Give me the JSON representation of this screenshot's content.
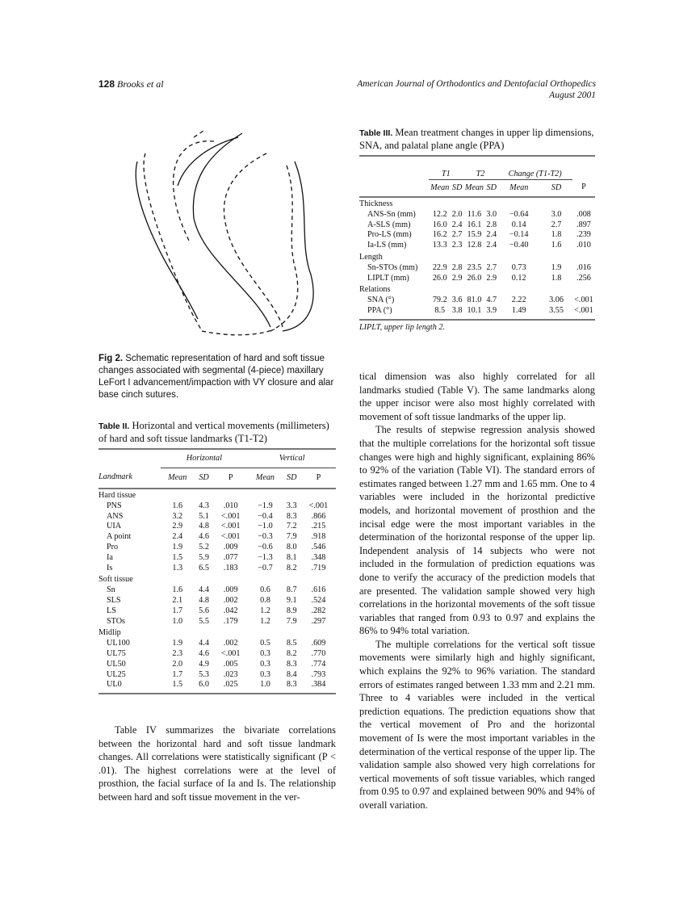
{
  "header": {
    "page_number": "128",
    "authors": "Brooks et al",
    "journal": "American Journal of Orthodontics and Dentofacial Orthopedics",
    "date": "August 2001"
  },
  "table3": {
    "label": "Table III.",
    "title": "Mean treatment changes in upper lip dimensions, SNA, and palatal plane angle (PPA)",
    "groups": [
      "T1",
      "T2",
      "Change (T1-T2)"
    ],
    "cols": [
      "Mean",
      "SD",
      "Mean",
      "SD",
      "Mean",
      "SD",
      "P"
    ],
    "sections": [
      {
        "name": "Thickness",
        "rows": [
          [
            "ANS-Sn (mm)",
            "12.2",
            "2.0",
            "11.6",
            "3.0",
            "−0.64",
            "3.0",
            ".008"
          ],
          [
            "A-SLS (mm)",
            "16.0",
            "2.4",
            "16.1",
            "2.8",
            "0.14",
            "2.7",
            ".897"
          ],
          [
            "Pro-LS (mm)",
            "16.2",
            "2.7",
            "15.9",
            "2.4",
            "−0.14",
            "1.8",
            ".239"
          ],
          [
            "Ia-LS (mm)",
            "13.3",
            "2.3",
            "12.8",
            "2.4",
            "−0.40",
            "1.6",
            ".010"
          ]
        ]
      },
      {
        "name": "Length",
        "rows": [
          [
            "Sn-STOs (mm)",
            "22.9",
            "2.8",
            "23.5",
            "2.7",
            "0.73",
            "1.9",
            ".016"
          ],
          [
            "LIPLT (mm)",
            "26.0",
            "2.9",
            "26.0",
            "2.9",
            "0.12",
            "1.8",
            ".256"
          ]
        ]
      },
      {
        "name": "Relations",
        "rows": [
          [
            "SNA (°)",
            "79.2",
            "3.6",
            "81.0",
            "4.7",
            "2.22",
            "3.06",
            "<.001"
          ],
          [
            "PPA (°)",
            "8.5",
            "3.8",
            "10.1",
            "3.9",
            "1.49",
            "3.55",
            "<.001"
          ]
        ]
      }
    ],
    "footnote": "LIPLT, upper lip length 2."
  },
  "figure": {
    "label": "Fig 2.",
    "caption": "Schematic representation of hard and soft tissue changes associated with segmental (4-piece) maxillary LeFort I advancement/impaction with VY closure and alar base cinch sutures."
  },
  "table2": {
    "label": "Table II.",
    "title": "Horizontal and vertical movements (millimeters) of hard and soft tissue landmarks (T1-T2)",
    "groups": [
      "Horizontal",
      "Vertical"
    ],
    "cols": [
      "Landmark",
      "Mean",
      "SD",
      "P",
      "Mean",
      "SD",
      "P"
    ],
    "sections": [
      {
        "name": "Hard tissue",
        "rows": [
          [
            "PNS",
            "1.6",
            "4.3",
            ".010",
            "−1.9",
            "3.3",
            "<.001"
          ],
          [
            "ANS",
            "3.2",
            "5.1",
            "<.001",
            "−0.4",
            "8.3",
            ".866"
          ],
          [
            "UIA",
            "2.9",
            "4.8",
            "<.001",
            "−1.0",
            "7.2",
            ".215"
          ],
          [
            "A point",
            "2.4",
            "4.6",
            "<.001",
            "−0.3",
            "7.9",
            ".918"
          ],
          [
            "Pro",
            "1.9",
            "5.2",
            ".009",
            "−0.6",
            "8.0",
            ".546"
          ],
          [
            "Ia",
            "1.5",
            "5.9",
            ".077",
            "−1.3",
            "8.1",
            ".348"
          ],
          [
            "Is",
            "1.3",
            "6.5",
            ".183",
            "−0.7",
            "8.2",
            ".719"
          ]
        ]
      },
      {
        "name": "Soft tissue",
        "rows": [
          [
            "Sn",
            "1.6",
            "4.4",
            ".009",
            "0.6",
            "8.7",
            ".616"
          ],
          [
            "SLS",
            "2.1",
            "4.8",
            ".002",
            "0.8",
            "9.1",
            ".524"
          ],
          [
            "LS",
            "1.7",
            "5.6",
            ".042",
            "1.2",
            "8.9",
            ".282"
          ],
          [
            "STOs",
            "1.0",
            "5.5",
            ".179",
            "1.2",
            "7.9",
            ".297"
          ]
        ]
      },
      {
        "name": "Midlip",
        "rows": [
          [
            "UL100",
            "1.9",
            "4.4",
            ".002",
            "0.5",
            "8.5",
            ".609"
          ],
          [
            "UL75",
            "2.3",
            "4.6",
            "<.001",
            "0.3",
            "8.2",
            ".770"
          ],
          [
            "UL50",
            "2.0",
            "4.9",
            ".005",
            "0.3",
            "8.3",
            ".774"
          ],
          [
            "UL25",
            "1.7",
            "5.3",
            ".023",
            "0.3",
            "8.4",
            ".793"
          ],
          [
            "UL0",
            "1.5",
            "6.0",
            ".025",
            "1.0",
            "8.3",
            ".384"
          ]
        ]
      }
    ]
  },
  "left_text": "Table IV summarizes the bivariate correlations between the horizontal hard and soft tissue landmark changes. All correlations were statistically significant (P < .01). The highest correlations were at the level of prosthion, the facial surface of Ia and Is. The relationship between hard and soft tissue movement in the ver-",
  "right_text": [
    "tical dimension was also highly correlated for all landmarks studied (Table V). The same landmarks along the upper incisor were also most highly correlated with movement of soft tissue landmarks of the upper lip.",
    "The results of stepwise regression analysis showed that the multiple correlations for the horizontal soft tissue changes were high and highly significant, explaining 86% to 92% of the variation (Table VI). The standard errors of estimates ranged between 1.27 mm and 1.65 mm. One to 4 variables were included in the horizontal predictive models, and horizontal movement of prosthion and the incisal edge were the most important variables in the determination of the horizontal response of the upper lip. Independent analysis of 14 subjects who were not included in the formulation of prediction equations was done to verify the accuracy of the prediction models that are presented. The validation sample showed very high correlations in the horizontal movements of the soft tissue variables that ranged from 0.93 to 0.97 and explains the 86% to 94% total variation.",
    "The multiple correlations for the vertical soft tissue movements were similarly high and highly significant, which explains the 92% to 96% variation. The standard errors of estimates ranged between 1.33 mm and 2.21 mm. Three to 4 variables were included in the vertical prediction equations. The prediction equations show that the vertical movement of Pro and the horizontal movement of Is were the most important variables in the determination of the vertical response of the upper lip. The validation sample also showed very high correlations for vertical movements of soft tissue variables, which ranged from 0.95 to 0.97 and explained between 90% and 94% of overall variation."
  ]
}
